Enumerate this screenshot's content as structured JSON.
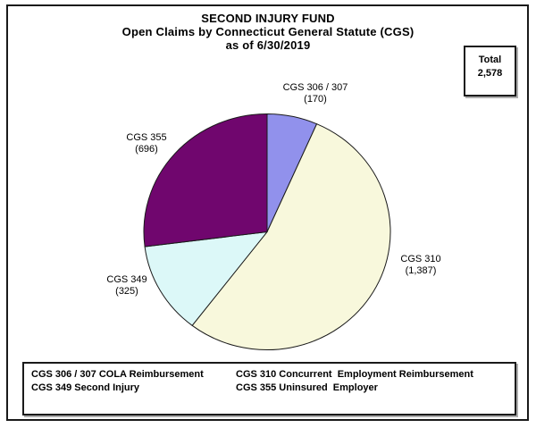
{
  "page": {
    "title_line1": "SECOND INJURY FUND",
    "title_line2": "Open Claims by Connecticut General Statute (CGS)",
    "title_line3": "as of 6/30/2019"
  },
  "total_box": {
    "label": "Total",
    "value": "2,578"
  },
  "chart_data": {
    "type": "pie",
    "title": "SECOND INJURY FUND Open Claims by Connecticut General Statute (CGS) as of 6/30/2019",
    "total": 2578,
    "start_angle_deg": 0,
    "direction": "clockwise",
    "legend_position": "bottom",
    "outline_color": "#1a1a1a",
    "slices": [
      {
        "label": "CGS 306 / 307",
        "value": 170,
        "display_value": "(170)",
        "color": "#9191EC"
      },
      {
        "label": "CGS 310",
        "value": 1387,
        "display_value": "(1,387)",
        "color": "#F8F8DC"
      },
      {
        "label": "CGS 349",
        "value": 325,
        "display_value": "(325)",
        "color": "#DCF8F8"
      },
      {
        "label": "CGS 355",
        "value": 696,
        "display_value": "(696)",
        "color": "#70066E"
      }
    ]
  },
  "legend": {
    "left_column": [
      "CGS 306 / 307 COLA Reimbursement",
      "CGS 349 Second Injury"
    ],
    "right_column": [
      "CGS 310 Concurrent  Employment Reimbursement",
      "CGS 355 Uninsured  Employer"
    ]
  }
}
